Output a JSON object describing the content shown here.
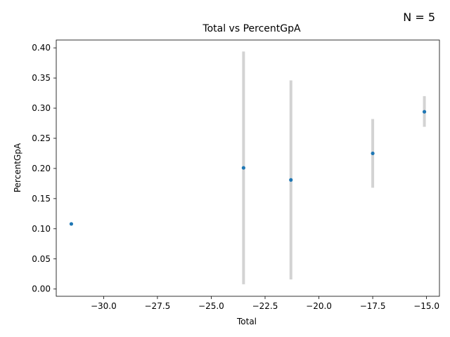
{
  "chart_data": {
    "type": "scatter",
    "title": "Total vs PercentGpA",
    "xlabel": "Total",
    "ylabel": "PercentGpA",
    "annotation": "N = 5",
    "xlim": [
      -32.2,
      -14.4
    ],
    "ylim": [
      -0.012,
      0.413
    ],
    "xticks": [
      -30.0,
      -27.5,
      -25.0,
      -22.5,
      -20.0,
      -17.5,
      -15.0
    ],
    "xtick_labels": [
      "−30.0",
      "−27.5",
      "−25.0",
      "−22.5",
      "−20.0",
      "−17.5",
      "−15.0"
    ],
    "yticks": [
      0.0,
      0.05,
      0.1,
      0.15,
      0.2,
      0.25,
      0.3,
      0.35,
      0.4
    ],
    "ytick_labels": [
      "0.00",
      "0.05",
      "0.10",
      "0.15",
      "0.20",
      "0.25",
      "0.30",
      "0.35",
      "0.40"
    ],
    "points": [
      {
        "x": -31.5,
        "y": 0.108,
        "err_low": null,
        "err_high": null
      },
      {
        "x": -23.5,
        "y": 0.201,
        "err_low": 0.008,
        "err_high": 0.394
      },
      {
        "x": -21.3,
        "y": 0.181,
        "err_low": 0.016,
        "err_high": 0.346
      },
      {
        "x": -17.5,
        "y": 0.225,
        "err_low": 0.168,
        "err_high": 0.282
      },
      {
        "x": -15.1,
        "y": 0.294,
        "err_low": 0.269,
        "err_high": 0.32
      }
    ],
    "grid": false,
    "colors": {
      "point": "#1f77b4",
      "errorbar": "#d3d3d3",
      "axis": "#000000"
    }
  }
}
